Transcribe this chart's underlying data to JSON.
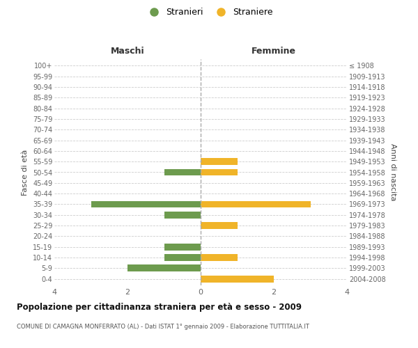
{
  "age_groups": [
    "0-4",
    "5-9",
    "10-14",
    "15-19",
    "20-24",
    "25-29",
    "30-34",
    "35-39",
    "40-44",
    "45-49",
    "50-54",
    "55-59",
    "60-64",
    "65-69",
    "70-74",
    "75-79",
    "80-84",
    "85-89",
    "90-94",
    "95-99",
    "100+"
  ],
  "birth_years": [
    "2004-2008",
    "1999-2003",
    "1994-1998",
    "1989-1993",
    "1984-1988",
    "1979-1983",
    "1974-1978",
    "1969-1973",
    "1964-1968",
    "1959-1963",
    "1954-1958",
    "1949-1953",
    "1944-1948",
    "1939-1943",
    "1934-1938",
    "1929-1933",
    "1924-1928",
    "1919-1923",
    "1914-1918",
    "1909-1913",
    "≤ 1908"
  ],
  "males": [
    0,
    2,
    1,
    1,
    0,
    0,
    1,
    3,
    0,
    0,
    1,
    0,
    0,
    0,
    0,
    0,
    0,
    0,
    0,
    0,
    0
  ],
  "females": [
    2,
    0,
    1,
    0,
    0,
    1,
    0,
    3,
    0,
    0,
    1,
    1,
    0,
    0,
    0,
    0,
    0,
    0,
    0,
    0,
    0
  ],
  "male_color": "#6d9b4e",
  "female_color": "#f0b429",
  "title": "Popolazione per cittadinanza straniera per età e sesso - 2009",
  "subtitle": "COMUNE DI CAMAGNA MONFERRATO (AL) - Dati ISTAT 1° gennaio 2009 - Elaborazione TUTTITALIA.IT",
  "xlabel_left": "Maschi",
  "xlabel_right": "Femmine",
  "ylabel_left": "Fasce di età",
  "ylabel_right": "Anni di nascita",
  "legend_male": "Stranieri",
  "legend_female": "Straniere",
  "xlim": 4,
  "background_color": "#ffffff",
  "grid_color": "#cccccc"
}
